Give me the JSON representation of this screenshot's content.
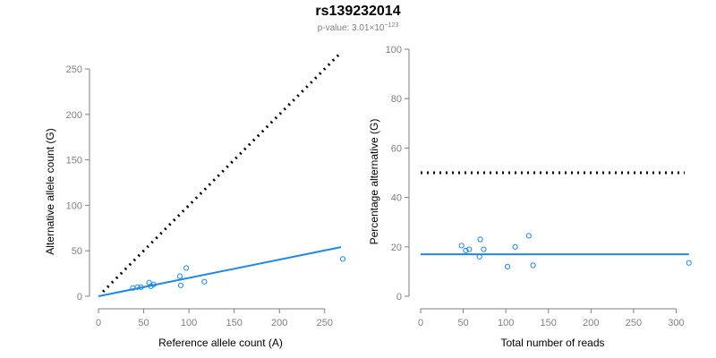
{
  "title": "rs139232014",
  "subtitle": {
    "prefix": "p-value: 3.01",
    "times": "×",
    "base": "10",
    "exponent": "−123"
  },
  "colors": {
    "series": "#1e88e5",
    "reference_line": "#000000",
    "axis": "#7f7f7f"
  },
  "chart_data": [
    {
      "type": "scatter",
      "xlabel": "Reference allele count (A)",
      "ylabel": "Alternative allele count (G)",
      "xlim": [
        0,
        270
      ],
      "ylim": [
        0,
        250
      ],
      "x_ticks": [
        0,
        50,
        100,
        150,
        200,
        250
      ],
      "y_ticks": [
        0,
        50,
        100,
        150,
        200,
        250
      ],
      "grid": false,
      "points": [
        {
          "x": 38,
          "y": 9
        },
        {
          "x": 43,
          "y": 10
        },
        {
          "x": 47,
          "y": 10
        },
        {
          "x": 56,
          "y": 15
        },
        {
          "x": 58,
          "y": 11
        },
        {
          "x": 61,
          "y": 13
        },
        {
          "x": 90,
          "y": 22
        },
        {
          "x": 91,
          "y": 12
        },
        {
          "x": 97,
          "y": 31
        },
        {
          "x": 117,
          "y": 16
        },
        {
          "x": 270,
          "y": 41
        }
      ],
      "fit_line": {
        "x": [
          0,
          268
        ],
        "y": [
          0,
          54
        ]
      },
      "reference_line": {
        "x": [
          5,
          268
        ],
        "y": [
          5,
          268
        ]
      }
    },
    {
      "type": "scatter",
      "xlabel": "Total number of reads",
      "ylabel": "Percentage alternative (G)",
      "xlim": [
        0,
        310
      ],
      "ylim": [
        0,
        100
      ],
      "x_ticks": [
        0,
        50,
        100,
        150,
        200,
        250,
        300
      ],
      "y_ticks": [
        0,
        20,
        40,
        60,
        80,
        100
      ],
      "grid": false,
      "points": [
        {
          "x": 48,
          "y": 20.5
        },
        {
          "x": 53,
          "y": 18.5
        },
        {
          "x": 57,
          "y": 19
        },
        {
          "x": 69,
          "y": 16
        },
        {
          "x": 70,
          "y": 23
        },
        {
          "x": 74,
          "y": 19
        },
        {
          "x": 102,
          "y": 12
        },
        {
          "x": 111,
          "y": 20
        },
        {
          "x": 127,
          "y": 24.5
        },
        {
          "x": 132,
          "y": 12.5
        },
        {
          "x": 315,
          "y": 13.5
        }
      ],
      "fit_line": {
        "x": [
          0,
          315
        ],
        "y": [
          17,
          17
        ]
      },
      "reference_line": {
        "x": [
          0,
          310
        ],
        "y": [
          50,
          50
        ]
      }
    }
  ]
}
